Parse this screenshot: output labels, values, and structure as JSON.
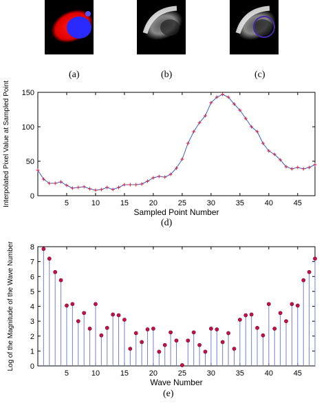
{
  "captions": {
    "a": "(a)",
    "b": "(b)",
    "c": "(c)",
    "d": "(d)",
    "e": "(e)"
  },
  "colors": {
    "line": "#3a5fc8",
    "marker": "#d01a3c",
    "stem": "#6f7fd8",
    "stem_marker": "#c0124a"
  },
  "chart_data": [
    {
      "type": "line",
      "xlabel": "Sampled Point Number",
      "ylabel": "Interpolated Pixel Value at Sampled Point",
      "xlim": [
        0,
        48
      ],
      "ylim": [
        0,
        150
      ],
      "xticks": [
        5,
        10,
        15,
        20,
        25,
        30,
        35,
        40,
        45
      ],
      "yticks": [
        0,
        50,
        100,
        150
      ],
      "marker": "+",
      "x": [
        0,
        1,
        2,
        3,
        4,
        5,
        6,
        7,
        8,
        9,
        10,
        11,
        12,
        13,
        14,
        15,
        16,
        17,
        18,
        19,
        20,
        21,
        22,
        23,
        24,
        25,
        26,
        27,
        28,
        29,
        30,
        31,
        32,
        33,
        34,
        35,
        36,
        37,
        38,
        39,
        40,
        41,
        42,
        43,
        44,
        45,
        46,
        47,
        48
      ],
      "y": [
        37,
        24,
        18,
        18,
        20,
        15,
        11,
        12,
        13,
        10,
        8,
        9,
        12,
        9,
        12,
        16,
        16,
        16,
        17,
        21,
        26,
        28,
        27,
        31,
        40,
        53,
        76,
        93,
        106,
        116,
        135,
        143,
        147,
        143,
        133,
        124,
        112,
        100,
        93,
        76,
        65,
        60,
        52,
        42,
        39,
        41,
        39,
        41,
        45
      ]
    },
    {
      "type": "stem",
      "xlabel": "Wave Number",
      "ylabel": "Log of the Magnitude of the Wave Number",
      "xlim": [
        0,
        48
      ],
      "ylim": [
        0,
        8
      ],
      "xticks": [
        5,
        10,
        15,
        20,
        25,
        30,
        35,
        40,
        45
      ],
      "yticks": [
        0,
        1,
        2,
        3,
        4,
        5,
        6,
        7,
        8
      ],
      "x": [
        1,
        2,
        3,
        4,
        5,
        6,
        7,
        8,
        9,
        10,
        11,
        12,
        13,
        14,
        15,
        16,
        17,
        18,
        19,
        20,
        21,
        22,
        23,
        24,
        25,
        26,
        27,
        28,
        29,
        30,
        31,
        32,
        33,
        34,
        35,
        36,
        37,
        38,
        39,
        40,
        41,
        42,
        43,
        44,
        45,
        46,
        47,
        48
      ],
      "y": [
        7.85,
        7.2,
        6.3,
        5.75,
        4.05,
        4.15,
        3.0,
        3.55,
        2.5,
        4.15,
        2.05,
        2.55,
        3.45,
        3.4,
        3.1,
        1.15,
        2.2,
        1.6,
        2.45,
        2.5,
        0.95,
        1.4,
        2.25,
        1.7,
        0.05,
        1.7,
        2.25,
        1.4,
        0.95,
        2.5,
        2.45,
        1.6,
        2.2,
        1.15,
        3.1,
        3.4,
        3.45,
        2.55,
        2.05,
        4.15,
        2.5,
        3.55,
        3.0,
        4.15,
        4.05,
        5.75,
        6.3,
        7.2
      ]
    }
  ]
}
